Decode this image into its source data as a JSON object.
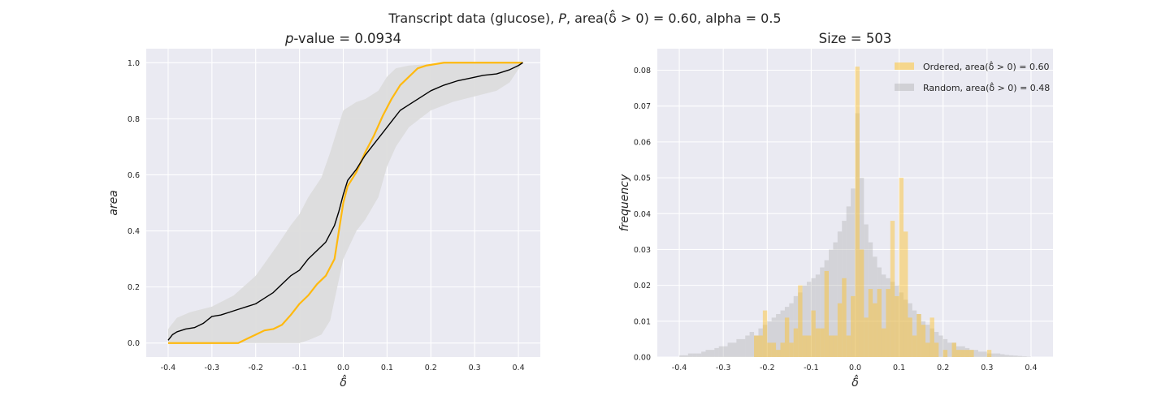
{
  "figure": {
    "suptitle": "Transcript data (glucose), P, area(δ̂ > 0) = 0.60, alpha = 0.5"
  },
  "chart_data": [
    {
      "type": "line",
      "title": "p-value = 0.0934",
      "xlabel": "δ̂",
      "ylabel": "area",
      "xlim": [
        -0.45,
        0.45
      ],
      "ylim": [
        -0.05,
        1.05
      ],
      "xticks": [
        "-0.4",
        "-0.3",
        "-0.2",
        "-0.1",
        "0.0",
        "0.1",
        "0.2",
        "0.3",
        "0.4"
      ],
      "yticks": [
        "0.0",
        "0.2",
        "0.4",
        "0.6",
        "0.8",
        "1.0"
      ],
      "grid": true,
      "colors": {
        "background": "#eaeaf2",
        "band": "#dcdcdc",
        "random": "#000000",
        "ordered": "#ffb90f"
      },
      "band": {
        "x": [
          -0.4,
          -0.38,
          -0.35,
          -0.3,
          -0.25,
          -0.2,
          -0.15,
          -0.12,
          -0.1,
          -0.08,
          -0.05,
          -0.03,
          0.0,
          0.03,
          0.05,
          0.08,
          0.1,
          0.12,
          0.15,
          0.2,
          0.25,
          0.3,
          0.35,
          0.38,
          0.41
        ],
        "upper": [
          0.05,
          0.09,
          0.11,
          0.13,
          0.17,
          0.24,
          0.35,
          0.42,
          0.46,
          0.52,
          0.59,
          0.68,
          0.83,
          0.86,
          0.87,
          0.9,
          0.95,
          0.98,
          0.99,
          0.995,
          1.0,
          1.0,
          1.0,
          1.0,
          1.0
        ],
        "lower": [
          0.0,
          0.0,
          0.0,
          0.0,
          0.0,
          0.0,
          0.0,
          0.0,
          0.0,
          0.01,
          0.03,
          0.08,
          0.3,
          0.4,
          0.44,
          0.52,
          0.63,
          0.7,
          0.77,
          0.83,
          0.86,
          0.88,
          0.9,
          0.93,
          1.0
        ]
      },
      "series": [
        {
          "name": "Random",
          "x": [
            -0.4,
            -0.39,
            -0.38,
            -0.36,
            -0.34,
            -0.32,
            -0.3,
            -0.28,
            -0.26,
            -0.24,
            -0.22,
            -0.2,
            -0.18,
            -0.16,
            -0.14,
            -0.12,
            -0.1,
            -0.08,
            -0.06,
            -0.04,
            -0.02,
            -0.01,
            0.0,
            0.01,
            0.03,
            0.05,
            0.07,
            0.09,
            0.11,
            0.13,
            0.15,
            0.17,
            0.2,
            0.23,
            0.26,
            0.29,
            0.32,
            0.35,
            0.38,
            0.4,
            0.41
          ],
          "y": [
            0.01,
            0.03,
            0.04,
            0.05,
            0.055,
            0.07,
            0.095,
            0.1,
            0.11,
            0.12,
            0.13,
            0.14,
            0.16,
            0.18,
            0.21,
            0.24,
            0.26,
            0.3,
            0.33,
            0.36,
            0.42,
            0.47,
            0.53,
            0.58,
            0.62,
            0.67,
            0.71,
            0.75,
            0.79,
            0.83,
            0.85,
            0.87,
            0.9,
            0.92,
            0.935,
            0.945,
            0.955,
            0.96,
            0.975,
            0.99,
            1.0
          ]
        },
        {
          "name": "Ordered",
          "x": [
            -0.4,
            -0.24,
            -0.22,
            -0.2,
            -0.18,
            -0.16,
            -0.14,
            -0.12,
            -0.1,
            -0.08,
            -0.06,
            -0.04,
            -0.02,
            -0.01,
            0.0,
            0.01,
            0.03,
            0.05,
            0.07,
            0.09,
            0.11,
            0.13,
            0.15,
            0.17,
            0.19,
            0.21,
            0.23,
            0.25,
            0.3,
            0.35,
            0.41
          ],
          "y": [
            0.0,
            0.0,
            0.015,
            0.03,
            0.045,
            0.05,
            0.065,
            0.1,
            0.14,
            0.17,
            0.21,
            0.24,
            0.3,
            0.4,
            0.5,
            0.56,
            0.61,
            0.68,
            0.74,
            0.81,
            0.87,
            0.92,
            0.95,
            0.98,
            0.99,
            0.995,
            1.0,
            1.0,
            1.0,
            1.0,
            1.0
          ]
        }
      ]
    },
    {
      "type": "bar",
      "title": "Size = 503",
      "xlabel": "δ̂",
      "ylabel": "frequency",
      "xlim": [
        -0.45,
        0.45
      ],
      "ylim": [
        0,
        0.086
      ],
      "xticks": [
        "-0.4",
        "-0.3",
        "-0.2",
        "-0.1",
        "0.0",
        "0.1",
        "0.2",
        "0.3",
        "0.4"
      ],
      "yticks": [
        "0.00",
        "0.01",
        "0.02",
        "0.03",
        "0.04",
        "0.05",
        "0.06",
        "0.07",
        "0.08"
      ],
      "grid": true,
      "legend_position": "top-right",
      "colors": {
        "background": "#eaeaf2",
        "random": "#a9a9a9",
        "ordered": "#ffc125"
      },
      "bin_start": -0.4,
      "bin_width": 0.01,
      "series": [
        {
          "name": "Ordered, area(δ̂ > 0) = 0.60",
          "values": [
            0,
            0,
            0,
            0,
            0,
            0,
            0,
            0,
            0,
            0,
            0,
            0,
            0,
            0,
            0,
            0,
            0,
            0.006,
            0.006,
            0.013,
            0.004,
            0.004,
            0.002,
            0.004,
            0.011,
            0.004,
            0.008,
            0.02,
            0.006,
            0.006,
            0.013,
            0.008,
            0.008,
            0.024,
            0.006,
            0.006,
            0.015,
            0.022,
            0.006,
            0.017,
            0.081,
            0.03,
            0.011,
            0.019,
            0.015,
            0.019,
            0.008,
            0.019,
            0.038,
            0.017,
            0.05,
            0.035,
            0.011,
            0.006,
            0.012,
            0.009,
            0.004,
            0.011,
            0.004,
            0,
            0.002,
            0,
            0.004,
            0.002,
            0.002,
            0.002,
            0.002,
            0,
            0,
            0,
            0.002,
            0,
            0,
            0,
            0,
            0,
            0,
            0,
            0,
            0
          ],
          "opacity": 0.45
        },
        {
          "name": "Random, area(δ̂ > 0) = 0.48",
          "values": [
            0.0005,
            0.0005,
            0.001,
            0.001,
            0.001,
            0.0015,
            0.002,
            0.002,
            0.0025,
            0.003,
            0.003,
            0.004,
            0.004,
            0.005,
            0.005,
            0.006,
            0.007,
            0.006,
            0.008,
            0.009,
            0.01,
            0.011,
            0.012,
            0.013,
            0.014,
            0.015,
            0.017,
            0.018,
            0.02,
            0.021,
            0.022,
            0.023,
            0.025,
            0.027,
            0.03,
            0.032,
            0.035,
            0.038,
            0.042,
            0.047,
            0.068,
            0.05,
            0.037,
            0.032,
            0.028,
            0.025,
            0.023,
            0.022,
            0.021,
            0.02,
            0.018,
            0.016,
            0.015,
            0.013,
            0.012,
            0.01,
            0.009,
            0.008,
            0.007,
            0.006,
            0.005,
            0.004,
            0.004,
            0.003,
            0.003,
            0.0025,
            0.002,
            0.002,
            0.0015,
            0.0015,
            0.001,
            0.001,
            0.001,
            0.0008,
            0.0006,
            0.0005,
            0.0004,
            0.0003,
            0.0002,
            0.0001
          ],
          "opacity": 0.35
        }
      ]
    }
  ]
}
